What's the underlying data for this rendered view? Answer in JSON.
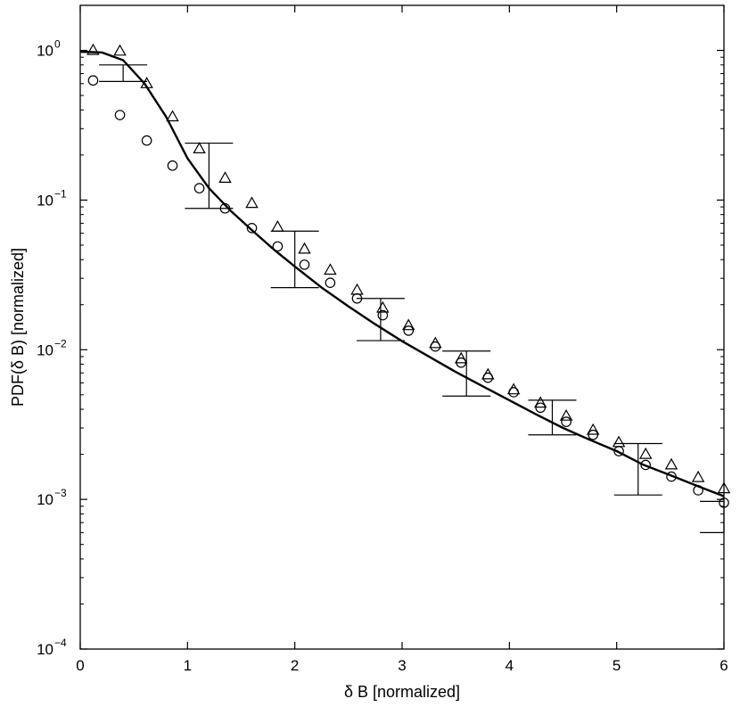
{
  "chart_data": {
    "type": "scatter",
    "title": "",
    "xlabel": "δ B [normalized]",
    "ylabel": "PDF(δ B) [normalized]",
    "xlim": [
      0,
      6
    ],
    "ylim": [
      0.0001,
      2
    ],
    "yscale": "log",
    "grid": false,
    "legend": "none",
    "x_ticks": [
      0,
      1,
      2,
      3,
      4,
      5,
      6
    ],
    "x_tick_labels": [
      "0",
      "1",
      "2",
      "3",
      "4",
      "5",
      "6"
    ],
    "y_ticks": [
      0.0001,
      0.001,
      0.01,
      0.1,
      1
    ],
    "y_tick_labels": [
      {
        "base": "10",
        "exp": "−4"
      },
      {
        "base": "10",
        "exp": "−3"
      },
      {
        "base": "10",
        "exp": "−2"
      },
      {
        "base": "10",
        "exp": "−1"
      },
      {
        "base": "10",
        "exp": "0"
      }
    ],
    "series": [
      {
        "marker": "triangle",
        "color": "#000000",
        "x": [
          0.12,
          0.37,
          0.62,
          0.86,
          1.11,
          1.35,
          1.6,
          1.84,
          2.09,
          2.33,
          2.58,
          2.82,
          3.06,
          3.31,
          3.55,
          3.8,
          4.04,
          4.29,
          4.53,
          4.78,
          5.02,
          5.27,
          5.51,
          5.76,
          6.0
        ],
        "y": [
          1.0,
          0.99,
          0.6,
          0.36,
          0.22,
          0.14,
          0.095,
          0.066,
          0.047,
          0.034,
          0.025,
          0.019,
          0.0145,
          0.011,
          0.0087,
          0.0068,
          0.0054,
          0.0044,
          0.0036,
          0.0029,
          0.0024,
          0.002,
          0.0017,
          0.0014,
          0.00118
        ]
      },
      {
        "marker": "circle",
        "color": "#000000",
        "x": [
          0.12,
          0.37,
          0.62,
          0.86,
          1.11,
          1.35,
          1.6,
          1.84,
          2.09,
          2.33,
          2.58,
          2.82,
          3.06,
          3.31,
          3.55,
          3.8,
          4.04,
          4.29,
          4.53,
          4.78,
          5.02,
          5.27,
          5.51,
          5.76,
          6.0
        ],
        "y": [
          0.63,
          0.37,
          0.25,
          0.17,
          0.12,
          0.088,
          0.065,
          0.049,
          0.037,
          0.028,
          0.022,
          0.017,
          0.0134,
          0.0105,
          0.0082,
          0.0065,
          0.0052,
          0.0041,
          0.0033,
          0.0027,
          0.0021,
          0.0017,
          0.00142,
          0.00115,
          0.00095
        ]
      },
      {
        "marker": "line",
        "color": "#000000",
        "x": [
          0,
          0.2,
          0.4,
          0.6,
          0.8,
          1.0,
          1.2,
          1.4,
          1.6,
          1.8,
          2.0,
          2.25,
          2.5,
          2.75,
          3.0,
          3.25,
          3.5,
          3.75,
          4.0,
          4.25,
          4.5,
          4.75,
          5.0,
          5.25,
          5.5,
          5.75,
          6.0
        ],
        "y": [
          0.98,
          0.97,
          0.86,
          0.6,
          0.36,
          0.19,
          0.12,
          0.085,
          0.063,
          0.047,
          0.036,
          0.026,
          0.0195,
          0.0148,
          0.0114,
          0.009,
          0.0071,
          0.0057,
          0.0046,
          0.0037,
          0.003,
          0.0025,
          0.0021,
          0.0017,
          0.00145,
          0.00123,
          0.00105
        ]
      }
    ],
    "error_bars": [
      {
        "x": 0.4,
        "low": 0.62,
        "high": 0.8
      },
      {
        "x": 1.2,
        "low": 0.088,
        "high": 0.24
      },
      {
        "x": 2.0,
        "low": 0.026,
        "high": 0.062
      },
      {
        "x": 2.8,
        "low": 0.0115,
        "high": 0.022
      },
      {
        "x": 3.6,
        "low": 0.0049,
        "high": 0.0098
      },
      {
        "x": 4.4,
        "low": 0.0027,
        "high": 0.0046
      },
      {
        "x": 5.2,
        "low": 0.00107,
        "high": 0.00236
      },
      {
        "x": 6.0,
        "low": 0.0006,
        "high": 0.00097
      }
    ]
  }
}
